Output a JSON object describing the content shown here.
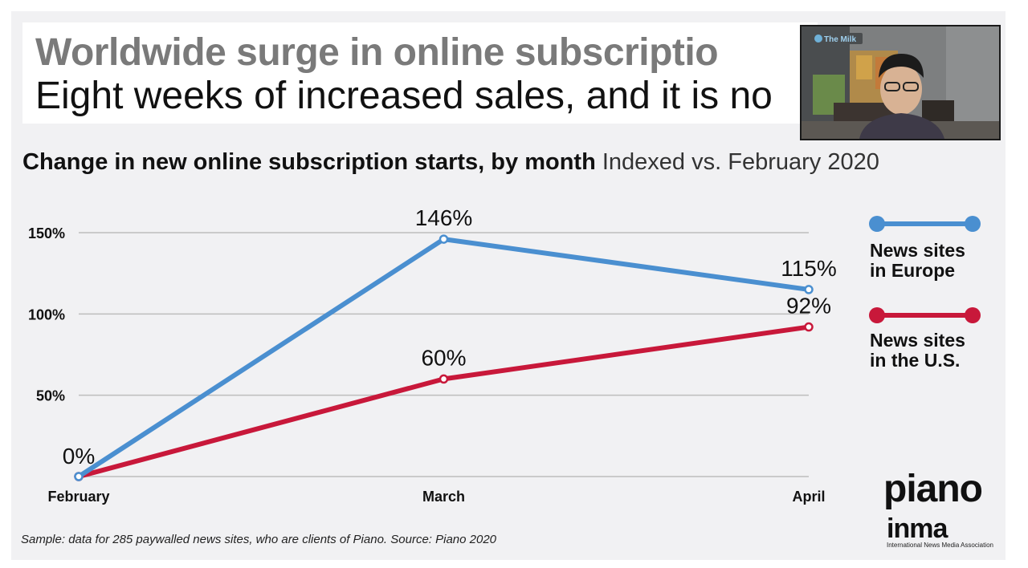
{
  "title": {
    "line1": "Worldwide surge in online subscriptio",
    "line2": "Eight weeks of increased sales, and it is no"
  },
  "subtitle": {
    "bold": "Change in new online subscription starts, by month",
    "light": "Indexed vs. February 2020"
  },
  "video": {
    "logo_text": "The Milk"
  },
  "footnote": "Sample: data for 285 paywalled news sites, who are clients of Piano. Source: Piano 2020",
  "brand": {
    "piano": "piano",
    "inma": "inma",
    "inma_sub": "International News Media Association"
  },
  "colors": {
    "europe": "#4a8fd0",
    "us": "#c8183a",
    "grid": "#bdbdbd"
  },
  "chart_data": {
    "type": "line",
    "title": "Change in new online subscription starts, by month",
    "subtitle": "Indexed vs. February 2020",
    "categories": [
      "February",
      "March",
      "April"
    ],
    "y_ticks": [
      {
        "value": 50,
        "label": "50%"
      },
      {
        "value": 100,
        "label": "100%"
      },
      {
        "value": 150,
        "label": "150%"
      }
    ],
    "ylim": [
      0,
      150
    ],
    "series": [
      {
        "name": "News sites in Europe",
        "name_line1": "News sites",
        "name_line2": "in Europe",
        "color": "#4a8fd0",
        "values": [
          0,
          146,
          115
        ],
        "labels": [
          "0%",
          "146%",
          "115%"
        ]
      },
      {
        "name": "News sites in the U.S.",
        "name_line1": "News sites",
        "name_line2": "in the U.S.",
        "color": "#c8183a",
        "values": [
          0,
          60,
          92
        ],
        "labels": [
          "",
          "60%",
          "92%"
        ]
      }
    ],
    "legend_position": "right"
  }
}
